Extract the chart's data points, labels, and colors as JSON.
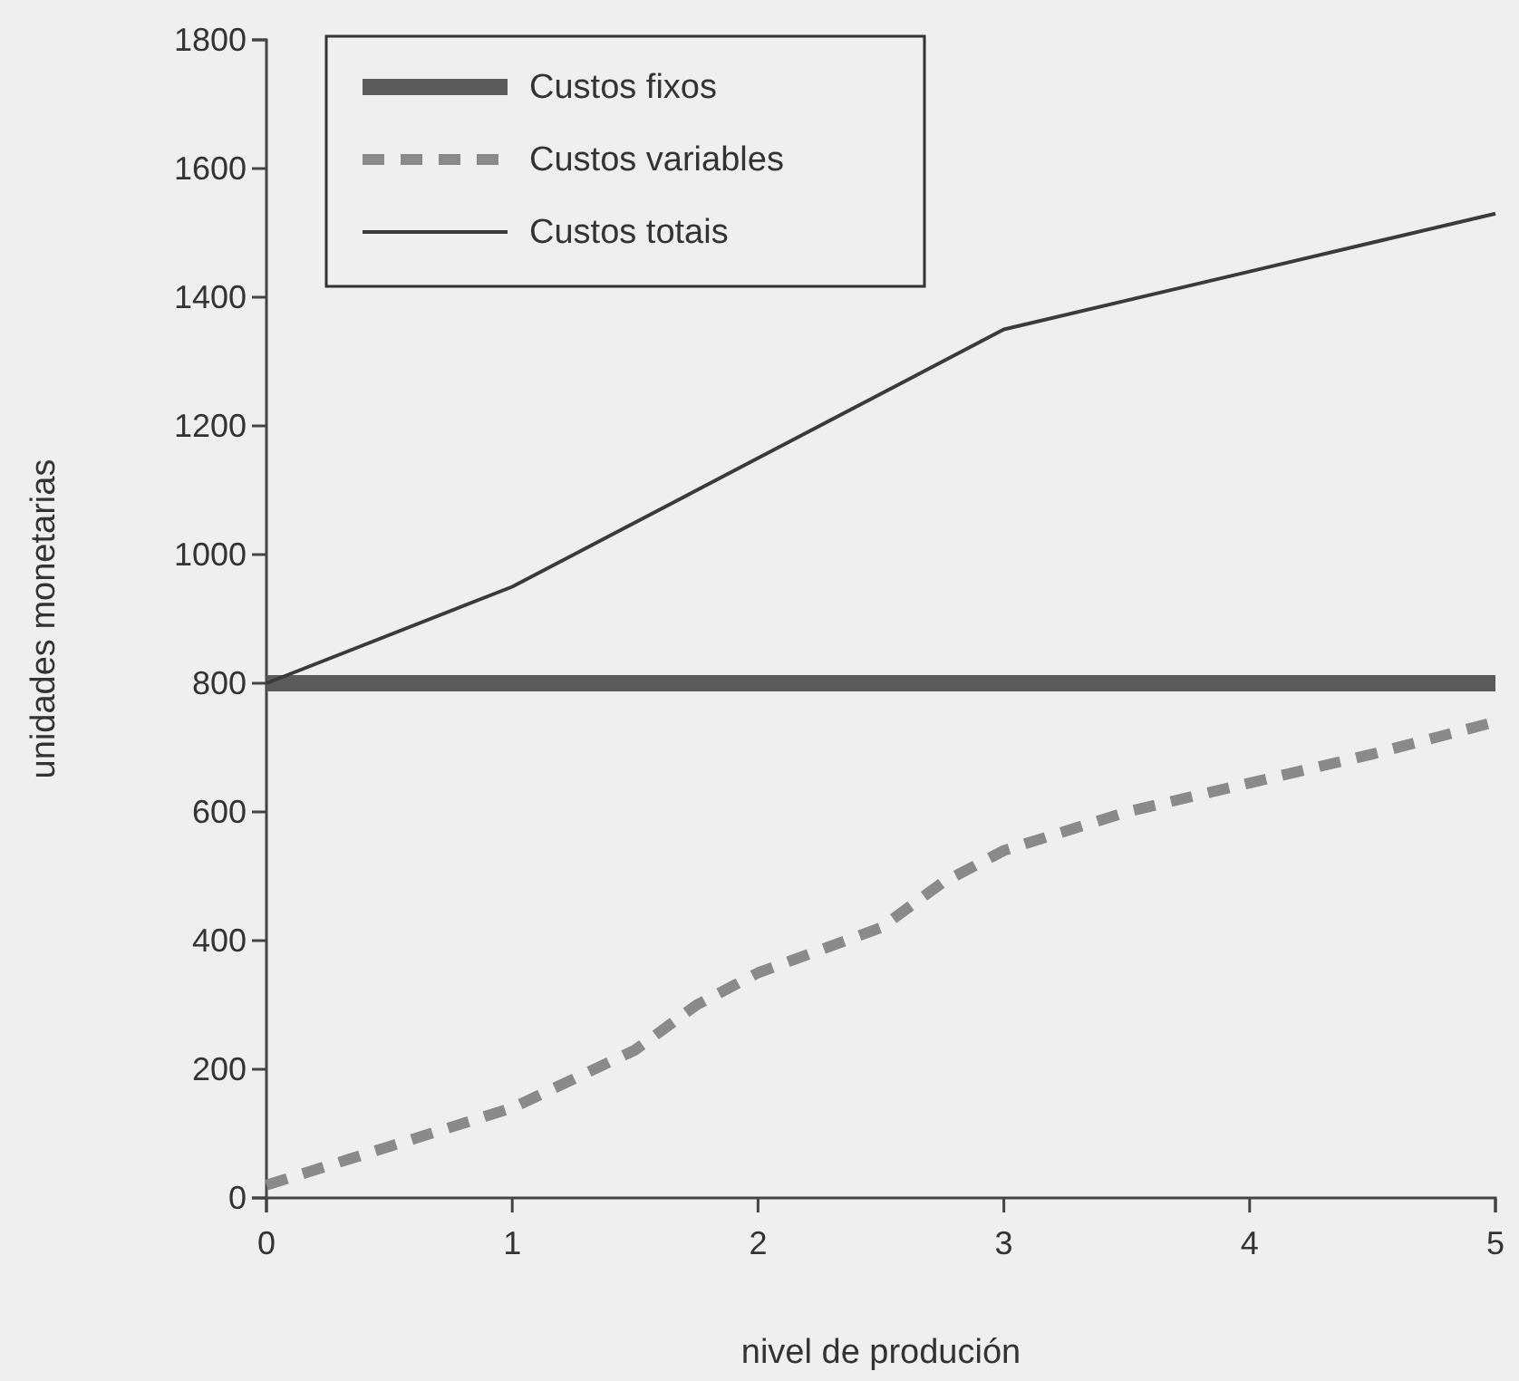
{
  "chart_data": {
    "type": "line",
    "xlabel": "nivel de produción",
    "ylabel": "unidades monetarias",
    "xlim": [
      0,
      5
    ],
    "xticks": [
      0,
      1,
      2,
      3,
      4,
      5
    ],
    "ylim": [
      0,
      1800
    ],
    "yticks": [
      0,
      200,
      400,
      600,
      800,
      1000,
      1200,
      1400,
      1600,
      1800
    ],
    "grid": false,
    "legend": "top left",
    "series": [
      {
        "name": "Custos fixos",
        "color": "#5a5a5a",
        "line_style": "solid",
        "x": [
          0,
          5
        ],
        "values": [
          800,
          800
        ]
      },
      {
        "name": "Custos variables",
        "color": "#8a8a8a",
        "line_style": "dashed",
        "x": [
          0,
          0.5,
          1,
          1.5,
          1.75,
          2,
          2.5,
          2.75,
          3,
          3.5,
          4,
          4.5,
          5
        ],
        "values": [
          20,
          80,
          140,
          230,
          300,
          350,
          420,
          490,
          540,
          600,
          645,
          690,
          740
        ]
      },
      {
        "name": "Custos totais",
        "color": "#3a3a3a",
        "line_style": "solid",
        "x": [
          0,
          1,
          2,
          3,
          4,
          5
        ],
        "values": [
          800,
          950,
          1150,
          1350,
          1440,
          1530
        ]
      }
    ]
  }
}
